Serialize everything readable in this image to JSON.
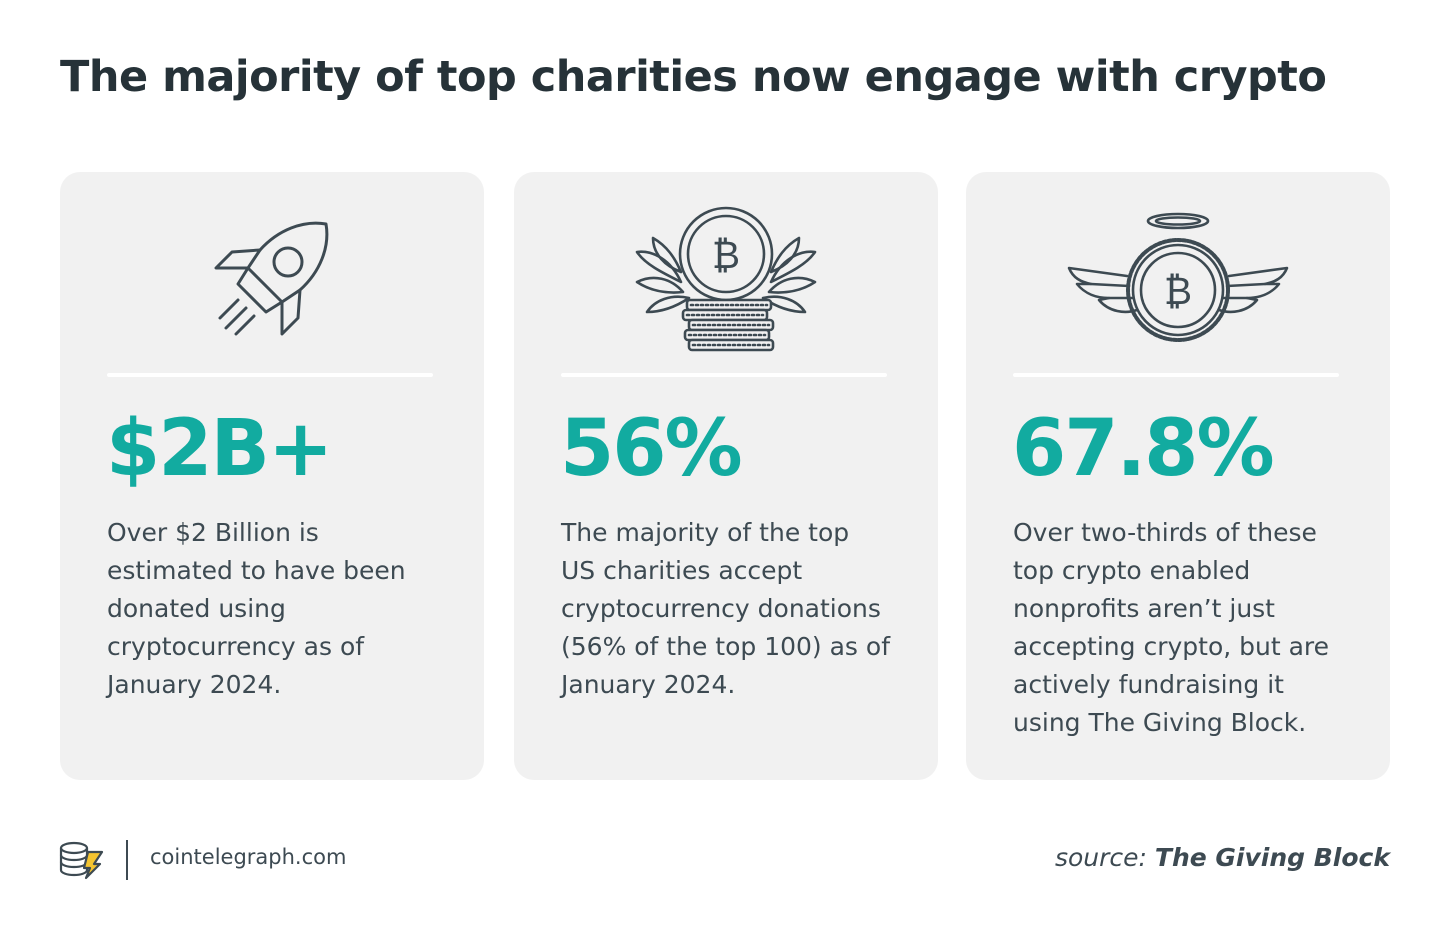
{
  "title": "The majority of top charities now engage with crypto",
  "cards": [
    {
      "icon": "rocket-icon",
      "stat": "$2B+",
      "description": "Over $2 Billion is estimated to have been donated using cryptocurrency as of January 2024."
    },
    {
      "icon": "bitcoin-laurel-coins-icon",
      "stat": "56%",
      "description": "The majority of the top US charities accept cryptocurrency donations (56% of the top 100) as of January 2024."
    },
    {
      "icon": "winged-bitcoin-halo-icon",
      "stat": "67.8%",
      "description": "Over two-thirds of these top crypto enabled nonprofits aren’t just accepting crypto, but are actively fundraising it using The Giving Block."
    }
  ],
  "footer": {
    "logo_icon": "cointelegraph-logo-icon",
    "site": "cointelegraph.com",
    "source_label": "source:",
    "source_name": "The Giving Block"
  },
  "colors": {
    "accent": "#12aba0",
    "text": "#263238",
    "card_bg": "#f1f1f1",
    "logo_accent": "#f4c430"
  }
}
